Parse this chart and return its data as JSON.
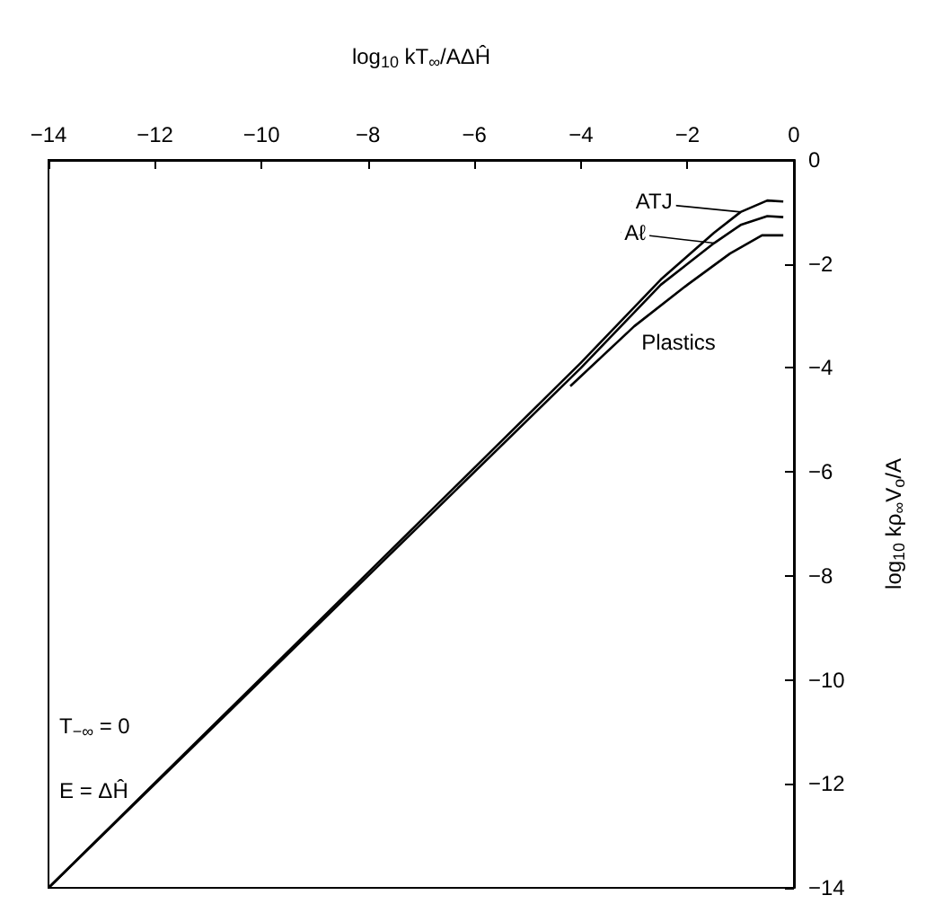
{
  "chart_data": {
    "type": "line",
    "xlabel": "log$_{10}$ kT$_{∞}$/AΔĤ",
    "ylabel": "log$_{10}$ kρ$_{∞}$V$_{o}$/A",
    "xlim": [
      -14,
      0
    ],
    "xticks": [
      -14,
      -12,
      -10,
      -8,
      -6,
      -4,
      -2,
      0
    ],
    "ylim": [
      -14,
      0
    ],
    "yticks": [
      -14,
      -12,
      -10,
      -8,
      -6,
      -4,
      -2,
      0
    ],
    "grid": false,
    "legend": false,
    "marker": "none",
    "line_style": "solid",
    "annotations": [
      "T$_{−∞}$ = 0",
      "E = ΔĤ"
    ],
    "series": [
      {
        "name": "ATJ",
        "color": "#000000",
        "x": [
          -14,
          -4,
          -2.5,
          -1.5,
          -1,
          -0.5,
          -0.2
        ],
        "values": [
          -14,
          -3.9,
          -2.3,
          -1.4,
          -1,
          -0.78,
          -0.8
        ]
      },
      {
        "name": "Aℓ",
        "color": "#000000",
        "x": [
          -14,
          -4,
          -2.5,
          -1.5,
          -1,
          -0.5,
          -0.2
        ],
        "values": [
          -14,
          -4,
          -2.4,
          -1.6,
          -1.25,
          -1.08,
          -1.1
        ]
      },
      {
        "name": "Plastics",
        "color": "#000000",
        "x": [
          -4.2,
          -3,
          -2,
          -1.2,
          -0.6,
          -0.2
        ],
        "values": [
          -4.35,
          -3.2,
          -2.4,
          -1.8,
          -1.45,
          -1.45
        ]
      }
    ]
  }
}
